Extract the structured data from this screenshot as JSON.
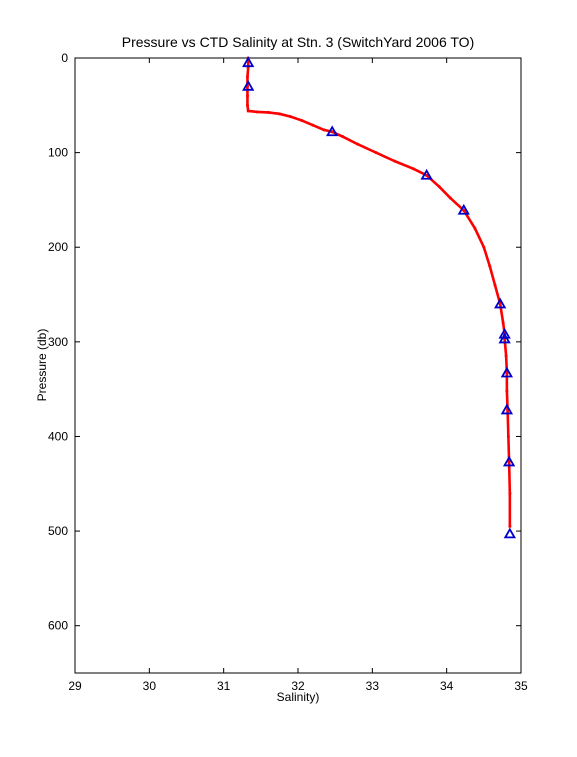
{
  "chart_data": {
    "type": "scatter",
    "title": "Pressure vs CTD Salinity at Stn. 3 (SwitchYard 2006 TO)",
    "xlabel": "Salinity)",
    "ylabel": "Pressure (db)",
    "xlim": [
      29,
      35
    ],
    "ylim": [
      0,
      650
    ],
    "y_reversed": true,
    "x_ticks": [
      29,
      30,
      31,
      32,
      33,
      34,
      35
    ],
    "y_ticks": [
      0,
      100,
      200,
      300,
      400,
      500,
      600
    ],
    "grid": false,
    "legend": "none",
    "series": [
      {
        "style": "line-with-dots",
        "color": "#ff0000",
        "points": [
          [
            31.33,
            0
          ],
          [
            31.33,
            10
          ],
          [
            31.32,
            20
          ],
          [
            31.32,
            30
          ],
          [
            31.32,
            40
          ],
          [
            31.32,
            50
          ],
          [
            31.33,
            56
          ],
          [
            31.45,
            57
          ],
          [
            31.6,
            57.5
          ],
          [
            31.75,
            59
          ],
          [
            31.9,
            62
          ],
          [
            32.05,
            66
          ],
          [
            32.2,
            71
          ],
          [
            32.35,
            76
          ],
          [
            32.46,
            78
          ],
          [
            32.6,
            83
          ],
          [
            32.8,
            91
          ],
          [
            33.05,
            100
          ],
          [
            33.3,
            109
          ],
          [
            33.55,
            117
          ],
          [
            33.73,
            124
          ],
          [
            33.9,
            136
          ],
          [
            34.05,
            148
          ],
          [
            34.23,
            161
          ],
          [
            34.38,
            180
          ],
          [
            34.5,
            200
          ],
          [
            34.58,
            220
          ],
          [
            34.65,
            240
          ],
          [
            34.72,
            260
          ],
          [
            34.76,
            280
          ],
          [
            34.78,
            292
          ],
          [
            34.78,
            297
          ],
          [
            34.8,
            315
          ],
          [
            34.81,
            333
          ],
          [
            34.81,
            352
          ],
          [
            34.82,
            372
          ],
          [
            34.83,
            400
          ],
          [
            34.84,
            427
          ],
          [
            34.85,
            460
          ],
          [
            34.85,
            495
          ]
        ]
      },
      {
        "style": "triangle-markers",
        "color": "#0000cc",
        "points": [
          [
            31.33,
            5
          ],
          [
            31.33,
            30
          ],
          [
            32.46,
            78
          ],
          [
            33.73,
            124
          ],
          [
            34.23,
            161
          ],
          [
            34.72,
            260
          ],
          [
            34.78,
            292
          ],
          [
            34.78,
            297
          ],
          [
            34.81,
            333
          ],
          [
            34.81,
            372
          ],
          [
            34.84,
            427
          ],
          [
            34.85,
            503
          ]
        ]
      }
    ]
  }
}
